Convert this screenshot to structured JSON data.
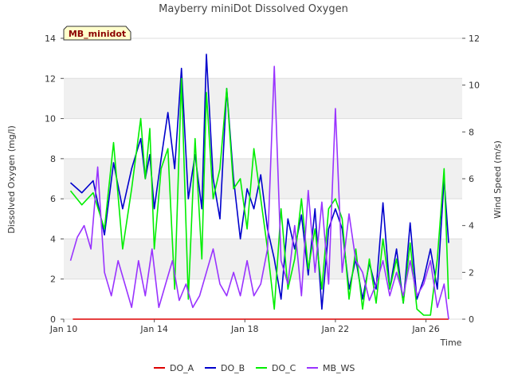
{
  "chart_data": {
    "type": "line",
    "title": "Mayberry miniDot Dissolved Oxygen",
    "badge": "MB_minidot",
    "xlabel": "Time",
    "ylabel_left": "Dissolved Oxygen (mg/l)",
    "ylabel_right": "Wind Speed (m/s)",
    "xlim": [
      0,
      17.6
    ],
    "ylim_left": [
      0,
      14
    ],
    "ylim_right": [
      0,
      12
    ],
    "x_ticks": [
      {
        "value": 0,
        "label": "Jan 10"
      },
      {
        "value": 4,
        "label": "Jan 14"
      },
      {
        "value": 8,
        "label": "Jan 18"
      },
      {
        "value": 12,
        "label": "Jan 22"
      },
      {
        "value": 16,
        "label": "Jan 26"
      }
    ],
    "y_ticks_left": [
      0,
      2,
      4,
      6,
      8,
      10,
      12,
      14
    ],
    "y_ticks_right": [
      0,
      2,
      4,
      6,
      8,
      10,
      12
    ],
    "grid": true,
    "banded_background": true,
    "legend_position": "bottom",
    "x_units_note": "x values are days after Jan 10",
    "series": [
      {
        "name": "DO_A",
        "color": "#dd0000",
        "axis": "left",
        "x": [
          0.4,
          17.0
        ],
        "y": [
          0,
          0
        ]
      },
      {
        "name": "DO_B",
        "color": "#0000cc",
        "axis": "left",
        "x": [
          0.3,
          0.8,
          1.3,
          1.8,
          2.2,
          2.6,
          3.0,
          3.4,
          3.6,
          3.8,
          4.0,
          4.3,
          4.6,
          4.9,
          5.2,
          5.5,
          5.8,
          6.1,
          6.3,
          6.6,
          6.9,
          7.2,
          7.5,
          7.8,
          8.1,
          8.4,
          8.7,
          9.0,
          9.3,
          9.6,
          9.9,
          10.2,
          10.5,
          10.8,
          11.1,
          11.4,
          11.7,
          12.0,
          12.3,
          12.6,
          12.9,
          13.2,
          13.5,
          13.8,
          14.1,
          14.4,
          14.7,
          15.0,
          15.3,
          15.6,
          15.9,
          16.2,
          16.5,
          16.8,
          17.0
        ],
        "y": [
          6.8,
          6.3,
          6.9,
          4.2,
          7.8,
          5.5,
          7.5,
          9.0,
          7.0,
          8.2,
          5.5,
          8.0,
          10.3,
          7.5,
          12.5,
          6.0,
          8.2,
          5.5,
          13.2,
          7.0,
          5.0,
          11.5,
          7.0,
          4.0,
          6.5,
          5.5,
          7.2,
          4.5,
          3.0,
          1.0,
          5.0,
          3.5,
          5.2,
          2.2,
          5.5,
          0.5,
          4.5,
          5.5,
          4.5,
          1.5,
          3.0,
          1.0,
          2.8,
          1.5,
          5.8,
          1.5,
          3.5,
          0.8,
          4.8,
          1.0,
          2.0,
          3.5,
          1.5,
          7.0,
          3.8
        ]
      },
      {
        "name": "DO_C",
        "color": "#00ee00",
        "axis": "left",
        "x": [
          0.3,
          0.8,
          1.3,
          1.8,
          2.2,
          2.6,
          3.0,
          3.4,
          3.6,
          3.8,
          4.0,
          4.3,
          4.6,
          4.9,
          5.2,
          5.5,
          5.8,
          6.1,
          6.3,
          6.6,
          6.9,
          7.2,
          7.5,
          7.8,
          8.1,
          8.4,
          8.7,
          9.0,
          9.3,
          9.6,
          9.9,
          10.2,
          10.5,
          10.8,
          11.1,
          11.4,
          11.7,
          12.0,
          12.3,
          12.6,
          12.9,
          13.2,
          13.5,
          13.8,
          14.1,
          14.4,
          14.7,
          15.0,
          15.3,
          15.6,
          15.9,
          16.2,
          16.5,
          16.8,
          17.0
        ],
        "y": [
          6.4,
          5.7,
          6.3,
          4.5,
          8.8,
          3.5,
          6.5,
          10.0,
          7.0,
          9.5,
          3.5,
          7.5,
          8.5,
          1.5,
          12.0,
          1.0,
          9.0,
          3.0,
          11.3,
          6.0,
          7.5,
          11.5,
          6.5,
          7.0,
          4.5,
          8.5,
          6.0,
          3.5,
          0.5,
          5.5,
          1.5,
          3.0,
          6.0,
          2.5,
          4.5,
          1.5,
          5.5,
          6.0,
          5.0,
          1.0,
          3.5,
          0.5,
          3.0,
          0.8,
          4.0,
          1.5,
          3.0,
          0.8,
          3.8,
          0.5,
          0.2,
          0.2,
          3.0,
          7.5,
          1.0
        ]
      },
      {
        "name": "MB_WS",
        "color": "#9933ff",
        "axis": "right",
        "x": [
          0.3,
          0.6,
          0.9,
          1.2,
          1.5,
          1.8,
          2.1,
          2.4,
          2.7,
          3.0,
          3.3,
          3.6,
          3.9,
          4.2,
          4.5,
          4.8,
          5.1,
          5.4,
          5.7,
          6.0,
          6.3,
          6.6,
          6.9,
          7.2,
          7.5,
          7.8,
          8.1,
          8.4,
          8.7,
          9.0,
          9.3,
          9.6,
          9.9,
          10.2,
          10.5,
          10.8,
          11.1,
          11.4,
          11.7,
          12.0,
          12.3,
          12.6,
          12.9,
          13.2,
          13.5,
          13.8,
          14.1,
          14.4,
          14.7,
          15.0,
          15.3,
          15.6,
          15.9,
          16.2,
          16.5,
          16.8,
          17.0
        ],
        "y": [
          2.5,
          3.5,
          4.0,
          3.0,
          6.5,
          2.0,
          1.0,
          2.5,
          1.5,
          0.5,
          2.5,
          1.0,
          3.0,
          0.5,
          1.5,
          2.5,
          0.8,
          1.5,
          0.5,
          1.0,
          2.0,
          3.0,
          1.5,
          1.0,
          2.0,
          1.0,
          2.5,
          1.0,
          1.5,
          3.0,
          10.8,
          2.5,
          1.5,
          4.0,
          1.0,
          5.5,
          2.0,
          5.0,
          1.5,
          9.0,
          2.0,
          4.5,
          2.5,
          2.0,
          0.8,
          1.5,
          2.5,
          1.0,
          2.0,
          1.0,
          2.5,
          1.0,
          1.5,
          2.5,
          0.5,
          1.5,
          0.0
        ]
      }
    ]
  }
}
